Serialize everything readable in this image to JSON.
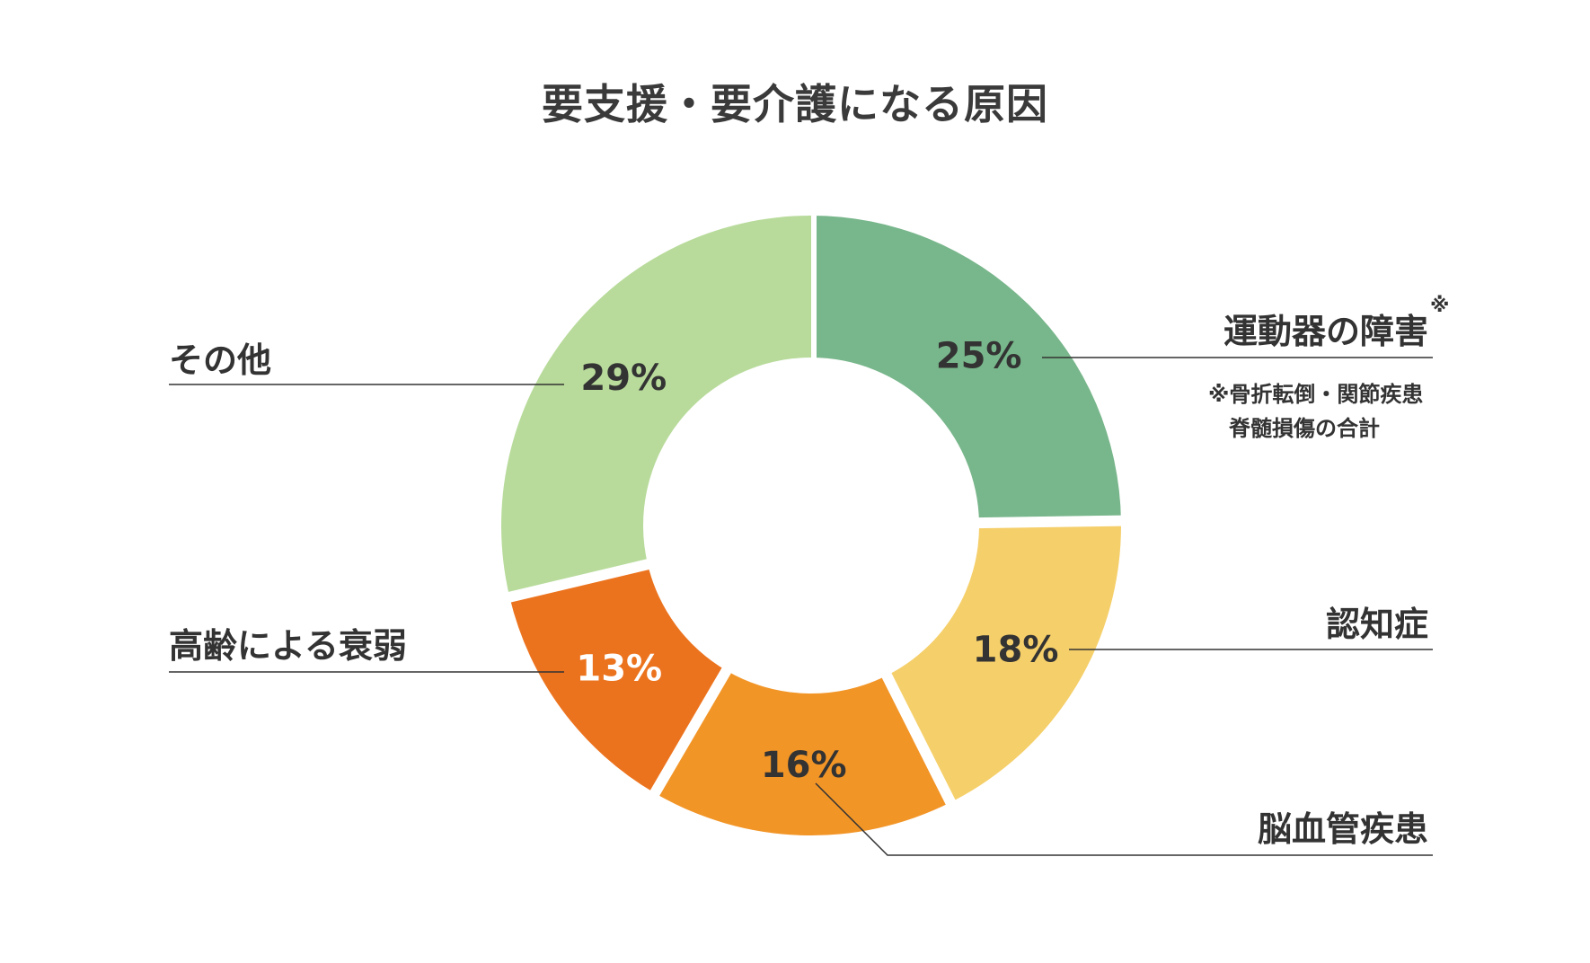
{
  "chart_data": {
    "type": "pie",
    "title": "要支援・要介護になる原因",
    "slices": [
      {
        "label": "運動器の障害",
        "marker": "※",
        "value": 25,
        "value_label": "25%",
        "color": "#78b68b",
        "text_color": "#333333"
      },
      {
        "label": "認知症",
        "value": 18,
        "value_label": "18%",
        "color": "#f5cf6a",
        "text_color": "#333333"
      },
      {
        "label": "脳血管疾患",
        "value": 16,
        "value_label": "16%",
        "color": "#f29527",
        "text_color": "#333333"
      },
      {
        "label": "高齢による衰弱",
        "value": 13,
        "value_label": "13%",
        "color": "#ec731e",
        "text_color": "#ffffff"
      },
      {
        "label": "その他",
        "value": 29,
        "value_label": "29%",
        "color": "#b8db9b",
        "text_color": "#333333"
      }
    ],
    "footnote": [
      "※骨折転倒・関節疾患",
      "脊髄損傷の合計"
    ],
    "legend": "none"
  }
}
